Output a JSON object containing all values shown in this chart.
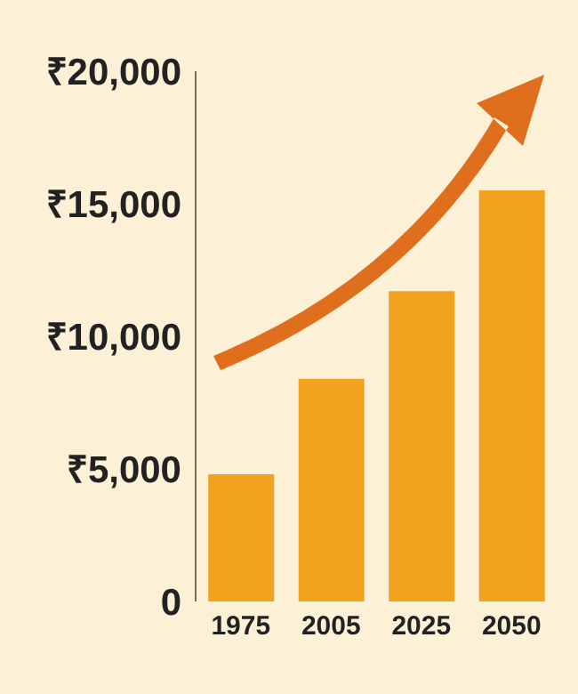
{
  "chart_data": {
    "type": "bar",
    "categories": [
      "1975",
      "2005",
      "2025",
      "2050"
    ],
    "values": [
      4800,
      8400,
      11700,
      15500
    ],
    "color": "#f2a31e",
    "ylim": [
      0,
      20000
    ],
    "yticks": [
      {
        "value": 0,
        "label": "0"
      },
      {
        "value": 5000,
        "label": "₹5,000"
      },
      {
        "value": 10000,
        "label": "₹10,000"
      },
      {
        "value": 15000,
        "label": "₹15,000"
      },
      {
        "value": 20000,
        "label": "₹20,000"
      }
    ],
    "grid": false
  }
}
